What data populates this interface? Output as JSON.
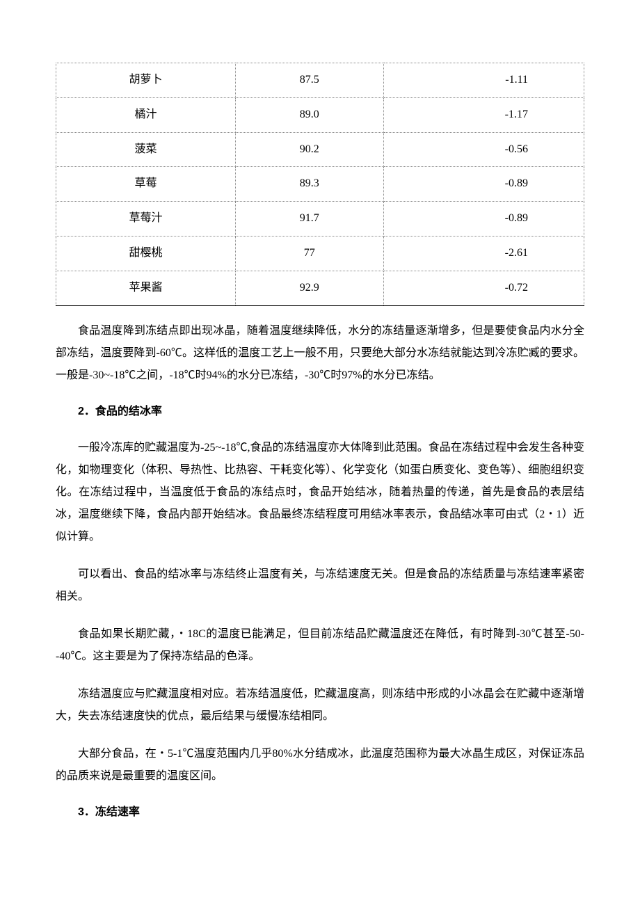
{
  "table": {
    "rows": [
      {
        "name": "胡萝卜",
        "v1": "87.5",
        "v2": "-1.11"
      },
      {
        "name": "橘汁",
        "v1": "89.0",
        "v2": "-1.17"
      },
      {
        "name": "菠菜",
        "v1": "90.2",
        "v2": "-0.56"
      },
      {
        "name": "草莓",
        "v1": "89.3",
        "v2": "-0.89"
      },
      {
        "name": "草莓汁",
        "v1": "91.7",
        "v2": "-0.89"
      },
      {
        "name": "甜樱桃",
        "v1": "77",
        "v2": "-2.61"
      },
      {
        "name": "苹果酱",
        "v1": "92.9",
        "v2": "-0.72"
      }
    ]
  },
  "paragraphs": {
    "p1": "食品温度降到冻结点即出现冰晶，随着温度继续降低，水分的冻结量逐渐增多，但是要使食品内水分全部冻结，温度要降到-60℃。这样低的温度工艺上一般不用，只要绝大部分水冻结就能达到冷冻贮臧的要求。一般是-30~-18℃之间，-18℃时94%的水分已冻结，-30℃时97%的水分已冻结。",
    "h2_num": "2",
    "h2_text": "．食品的结冰率",
    "p2": "一般冷冻库的贮藏温度为-25~-18℃,食品的冻结温度亦大体降到此范围。食品在冻结过程中会发生各种变化，如物理变化（体积、导热性、比热容、干耗变化等）、化学变化（如蛋白质变化、变色等）、细胞组织变化。在冻结过程中，当温度低于食品的冻结点时，食品开始结冰，随着热量的传递，首先是食品的表层结冰，温度继续下降，食品内部开始结冰。食品最终冻结程度可用结冰率表示，食品结冰率可由式（2・1）近似计算。",
    "p3": "可以看出、食品的结冰率与冻结终止温度有关，与冻结速度无关。但是食品的冻结质量与冻结速率紧密相关。",
    "p4": "食品如果长期贮藏，・18C的温度已能满足，但目前冻结品贮藏温度还在降低，有时降到-30℃甚至-50--40℃。这主要是为了保持冻结品的色泽。",
    "p5": "冻结温度应与贮藏温度相对应。若冻结温度低，贮藏温度高，则冻结中形成的小冰晶会在贮藏中逐渐增大，失去冻结速度快的优点，最后结果与缓慢冻结相同。",
    "p6": "大部分食品，在・5-1℃温度范围内几乎80%水分结成冰，此温度范围称为最大冰晶生成区，对保证冻品的品质来说是最重要的温度区间。",
    "h3_num": "3",
    "h3_text": "．冻结速率"
  }
}
